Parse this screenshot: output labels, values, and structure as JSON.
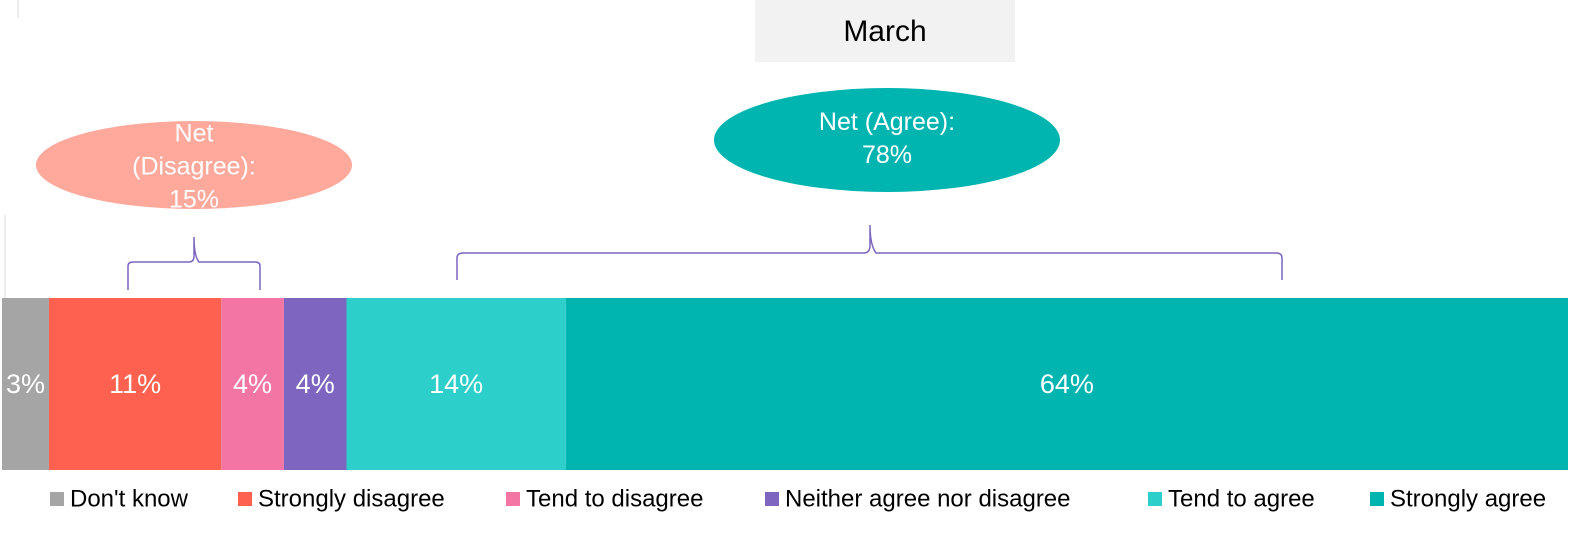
{
  "chart_data": {
    "type": "stacked-bar",
    "title": "March",
    "categories": [
      "March"
    ],
    "series": [
      {
        "name": "Don't know",
        "color": "#a5a5a5",
        "values": [
          3
        ],
        "value_labels": [
          "3%"
        ]
      },
      {
        "name": "Strongly disagree",
        "color": "#ff6150",
        "values": [
          11
        ],
        "value_labels": [
          "11%"
        ]
      },
      {
        "name": "Tend to disagree",
        "color": "#f275a4",
        "values": [
          4
        ],
        "value_labels": [
          "4%"
        ]
      },
      {
        "name": "Neither agree nor disagree",
        "color": "#7d65c0",
        "values": [
          4
        ],
        "value_labels": [
          "4%"
        ]
      },
      {
        "name": "Tend to agree",
        "color": "#2dcfca",
        "values": [
          14
        ],
        "value_labels": [
          "14%"
        ]
      },
      {
        "name": "Strongly agree",
        "color": "#00b5b0",
        "values": [
          64
        ],
        "value_labels": [
          "64%"
        ]
      }
    ],
    "xlim": [
      0,
      100
    ],
    "annotations": [
      {
        "lines": [
          "Net",
          "(Disagree):",
          "15%"
        ],
        "color": "#ffa89c"
      },
      {
        "lines": [
          "Net (Agree):",
          "78%"
        ],
        "color": "#00b5b0"
      }
    ],
    "legend": "bottom"
  }
}
